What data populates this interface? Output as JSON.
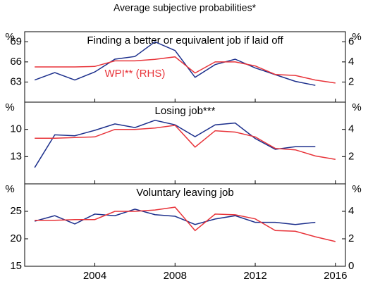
{
  "subtitle": "Average subjective probabilities*",
  "chart_data": [
    {
      "type": "line",
      "title": "Finding a better or equivalent job if laid off",
      "annotation": "WPI** (RHS)",
      "x": [
        2001,
        2002,
        2003,
        2004,
        2005,
        2006,
        2007,
        2008,
        2009,
        2010,
        2011,
        2012,
        2013,
        2014,
        2015,
        2016
      ],
      "xlim": [
        2000.5,
        2016.5
      ],
      "xticks": [
        2004,
        2008,
        2012,
        2016
      ],
      "y_label": "%",
      "y2_label": "%",
      "ylim": [
        60,
        70.5
      ],
      "yticks": [
        63,
        66,
        69
      ],
      "y2lim": [
        0,
        7
      ],
      "y2ticks": [
        2,
        4,
        6
      ],
      "series": [
        {
          "color": "#1c2f8c",
          "values": [
            63.3,
            64.4,
            63.3,
            64.5,
            66.4,
            66.8,
            69,
            67.7,
            63.7,
            65.6,
            66.4,
            65.1,
            64.1,
            63.1,
            62.5,
            null
          ]
        },
        {
          "color": "#e8343a",
          "axis": "y2",
          "values": [
            3.5,
            3.5,
            3.5,
            3.55,
            4.1,
            4.1,
            4.25,
            4.5,
            2.9,
            4,
            4,
            3.6,
            2.75,
            2.65,
            2.2,
            1.9
          ]
        }
      ]
    },
    {
      "type": "line",
      "title": "Losing job***",
      "x": [
        2001,
        2002,
        2003,
        2004,
        2005,
        2006,
        2007,
        2008,
        2009,
        2010,
        2011,
        2012,
        2013,
        2014,
        2015,
        2016
      ],
      "xlim": [
        2000.5,
        2016.5
      ],
      "xticks": [
        2004,
        2008,
        2012,
        2016
      ],
      "y_label": "%",
      "y2_label": "%",
      "ylim": [
        16,
        7
      ],
      "yticks": [
        10,
        13
      ],
      "y2lim": [
        0,
        6
      ],
      "y2ticks": [
        2,
        4
      ],
      "series": [
        {
          "color": "#1c2f8c",
          "values": [
            14.2,
            10.6,
            10.7,
            10.1,
            9.4,
            9.8,
            9.0,
            9.5,
            10.8,
            9.5,
            9.3,
            11.0,
            12.2,
            11.9,
            11.9,
            null
          ]
        },
        {
          "color": "#e8343a",
          "axis": "y2",
          "values": [
            3.35,
            3.35,
            3.4,
            3.45,
            4.0,
            4.0,
            4.1,
            4.3,
            2.7,
            3.9,
            3.8,
            3.45,
            2.6,
            2.5,
            2.05,
            1.8
          ]
        }
      ]
    },
    {
      "type": "line",
      "title": "Voluntary leaving job",
      "x": [
        2001,
        2002,
        2003,
        2004,
        2005,
        2006,
        2007,
        2008,
        2009,
        2010,
        2011,
        2012,
        2013,
        2014,
        2015,
        2016
      ],
      "xlim": [
        2000.5,
        2016.5
      ],
      "xticks": [
        2004,
        2008,
        2012,
        2016
      ],
      "y_label": "%",
      "y2_label": "%",
      "ylim": [
        15,
        30
      ],
      "yticks": [
        15,
        20,
        25
      ],
      "y2lim": [
        0,
        6
      ],
      "y2ticks": [
        0,
        2,
        4
      ],
      "series": [
        {
          "color": "#1c2f8c",
          "values": [
            23.2,
            24.2,
            22.7,
            24.5,
            24.2,
            25.4,
            24.4,
            24.1,
            22.6,
            23.6,
            24.2,
            23.0,
            23.0,
            22.6,
            23.0,
            null
          ]
        },
        {
          "color": "#e8343a",
          "axis": "y2",
          "values": [
            3.35,
            3.35,
            3.4,
            3.4,
            4.0,
            4.0,
            4.1,
            4.3,
            2.6,
            3.8,
            3.75,
            3.45,
            2.6,
            2.55,
            2.15,
            1.8
          ]
        }
      ]
    }
  ]
}
